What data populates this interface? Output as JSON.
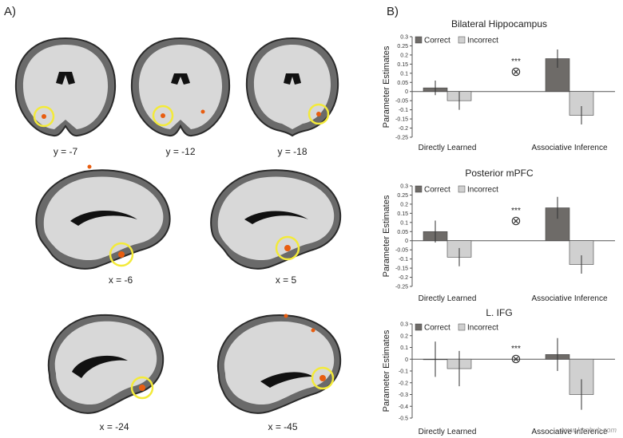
{
  "panels": {
    "a": "A)",
    "b": "B)"
  },
  "brain_coords": [
    "y = -7",
    "y = -12",
    "y = -18",
    "x = -6",
    "x = 5",
    "x = -24",
    "x = -45"
  ],
  "watermark": "www.kenhub.com",
  "colors": {
    "correct": "#6e6b68",
    "incorrect": "#d0d0d0",
    "highlight": "#f3ea3a",
    "activation": "#e85d10"
  },
  "chart_data": [
    {
      "type": "bar",
      "title": "Bilateral Hippocampus",
      "ylabel": "Parameter Estimates",
      "categories": [
        "Directly Learned",
        "Associative Inference"
      ],
      "series": [
        {
          "name": "Correct",
          "values": [
            0.02,
            0.18
          ],
          "errors": [
            0.04,
            0.05
          ]
        },
        {
          "name": "Incorrect",
          "values": [
            -0.05,
            -0.13
          ],
          "errors": [
            0.05,
            0.05
          ]
        }
      ],
      "ylim": [
        -0.25,
        0.3
      ],
      "yticks": [
        "0.3",
        "0.25",
        "0.2",
        "0.15",
        "0.1",
        "0.05",
        "0",
        "-0.05",
        "-0.1",
        "-0.15",
        "-0.2",
        "-0.25"
      ],
      "significance": "***",
      "interaction_symbol": "⊗",
      "legend": "top-left"
    },
    {
      "type": "bar",
      "title": "Posterior mPFC",
      "ylabel": "Parameter Estimates",
      "categories": [
        "Directly Learned",
        "Associative Inference"
      ],
      "series": [
        {
          "name": "Correct",
          "values": [
            0.05,
            0.18
          ],
          "errors": [
            0.06,
            0.06
          ]
        },
        {
          "name": "Incorrect",
          "values": [
            -0.09,
            -0.13
          ],
          "errors": [
            0.05,
            0.05
          ]
        }
      ],
      "ylim": [
        -0.25,
        0.3
      ],
      "yticks": [
        "0.3",
        "0.25",
        "0.2",
        "0.15",
        "0.1",
        "0.05",
        "0",
        "-0.05",
        "-0.1",
        "-0.15",
        "-0.2",
        "-0.25"
      ],
      "significance": "***",
      "interaction_symbol": "⊗",
      "legend": "top-left"
    },
    {
      "type": "bar",
      "title": "L. IFG",
      "ylabel": "Parameter Estimates",
      "categories": [
        "Directly Learned",
        "Associative Inference"
      ],
      "series": [
        {
          "name": "Correct",
          "values": [
            0.0,
            0.04
          ],
          "errors": [
            0.15,
            0.14
          ]
        },
        {
          "name": "Incorrect",
          "values": [
            -0.08,
            -0.3
          ],
          "errors": [
            0.15,
            0.13
          ]
        }
      ],
      "ylim": [
        -0.5,
        0.3
      ],
      "yticks": [
        "0.3",
        "0.2",
        "0.1",
        "0",
        "-0.1",
        "-0.2",
        "-0.3",
        "-0.4",
        "-0.5"
      ],
      "significance": "***",
      "interaction_symbol": "⊗",
      "legend": "top-left"
    }
  ]
}
